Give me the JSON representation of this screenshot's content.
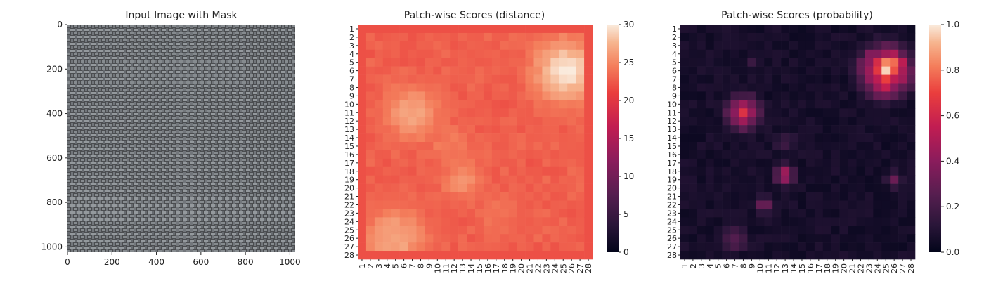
{
  "chart_data": [
    {
      "type": "image",
      "title": "Input Image with Mask",
      "xlim": [
        0,
        1024
      ],
      "ylim": [
        1024,
        0
      ],
      "xticks": [
        0,
        200,
        400,
        600,
        800,
        1000
      ],
      "yticks": [
        0,
        200,
        400,
        600,
        800,
        1000
      ],
      "image": "grey woven fabric texture",
      "colors": {
        "fabric_dark": "#3c3c40",
        "fabric_light": "#9a9ea2"
      }
    },
    {
      "type": "heatmap",
      "title": "Patch-wise Scores (distance)",
      "rows": 28,
      "cols": 28,
      "xticklabels": [
        "1",
        "2",
        "3",
        "4",
        "5",
        "6",
        "7",
        "8",
        "9",
        "10",
        "11",
        "12",
        "13",
        "14",
        "15",
        "16",
        "17",
        "18",
        "19",
        "20",
        "21",
        "22",
        "23",
        "24",
        "25",
        "26",
        "27",
        "28"
      ],
      "yticklabels": [
        "1",
        "2",
        "3",
        "4",
        "5",
        "6",
        "7",
        "8",
        "9",
        "10",
        "11",
        "12",
        "13",
        "14",
        "15",
        "16",
        "17",
        "18",
        "19",
        "20",
        "21",
        "22",
        "23",
        "24",
        "25",
        "26",
        "27",
        "28"
      ],
      "colorbar": {
        "range": [
          0,
          30
        ],
        "ticks": [
          0,
          5,
          10,
          15,
          20,
          25,
          30
        ]
      },
      "colormap": "rocket",
      "base_value": 22.5,
      "border_value": 20.5,
      "hotspots": [
        {
          "row": 5.5,
          "col": 24.8,
          "radius": 2.6,
          "value": 29.8
        },
        {
          "row": 10.5,
          "col": 6.5,
          "radius": 2.3,
          "value": 26.8
        },
        {
          "row": 25.5,
          "col": 4.5,
          "radius": 2.6,
          "value": 27.0
        },
        {
          "row": 18.5,
          "col": 12.5,
          "radius": 1.8,
          "value": 25.5
        },
        {
          "row": 14.5,
          "col": 11.0,
          "radius": 2.0,
          "value": 24.5
        },
        {
          "row": 22.5,
          "col": 16.5,
          "radius": 2.0,
          "value": 24.0
        }
      ]
    },
    {
      "type": "heatmap",
      "title": "Patch-wise Scores (probability)",
      "rows": 28,
      "cols": 28,
      "xticklabels": [
        "1",
        "2",
        "3",
        "4",
        "5",
        "6",
        "7",
        "8",
        "9",
        "10",
        "11",
        "12",
        "13",
        "14",
        "15",
        "16",
        "17",
        "18",
        "19",
        "20",
        "21",
        "22",
        "23",
        "24",
        "25",
        "26",
        "27",
        "28"
      ],
      "yticklabels": [
        "1",
        "2",
        "3",
        "4",
        "5",
        "6",
        "7",
        "8",
        "9",
        "10",
        "11",
        "12",
        "13",
        "14",
        "15",
        "16",
        "17",
        "18",
        "19",
        "20",
        "21",
        "22",
        "23",
        "24",
        "25",
        "26",
        "27",
        "28"
      ],
      "colorbar": {
        "range": [
          0.0,
          1.0
        ],
        "ticks": [
          "0.0",
          "0.2",
          "0.4",
          "0.6",
          "0.8",
          "1.0"
        ]
      },
      "colormap": "rocket",
      "base_value": 0.03,
      "hotspots": [
        {
          "row": 5.5,
          "col": 24.5,
          "radius": 2.6,
          "value": 0.85
        },
        {
          "row": 10.5,
          "col": 7.5,
          "radius": 1.9,
          "value": 0.55
        },
        {
          "row": 18.0,
          "col": 12.5,
          "radius": 1.2,
          "value": 0.48
        },
        {
          "row": 21.5,
          "col": 10.0,
          "radius": 1.0,
          "value": 0.3
        },
        {
          "row": 25.5,
          "col": 6.5,
          "radius": 1.4,
          "value": 0.3
        },
        {
          "row": 14.0,
          "col": 12.5,
          "radius": 1.3,
          "value": 0.2
        },
        {
          "row": 18.5,
          "col": 25.5,
          "radius": 1.0,
          "value": 0.28
        },
        {
          "row": 4.5,
          "col": 8.5,
          "radius": 1.0,
          "value": 0.15
        }
      ]
    }
  ]
}
